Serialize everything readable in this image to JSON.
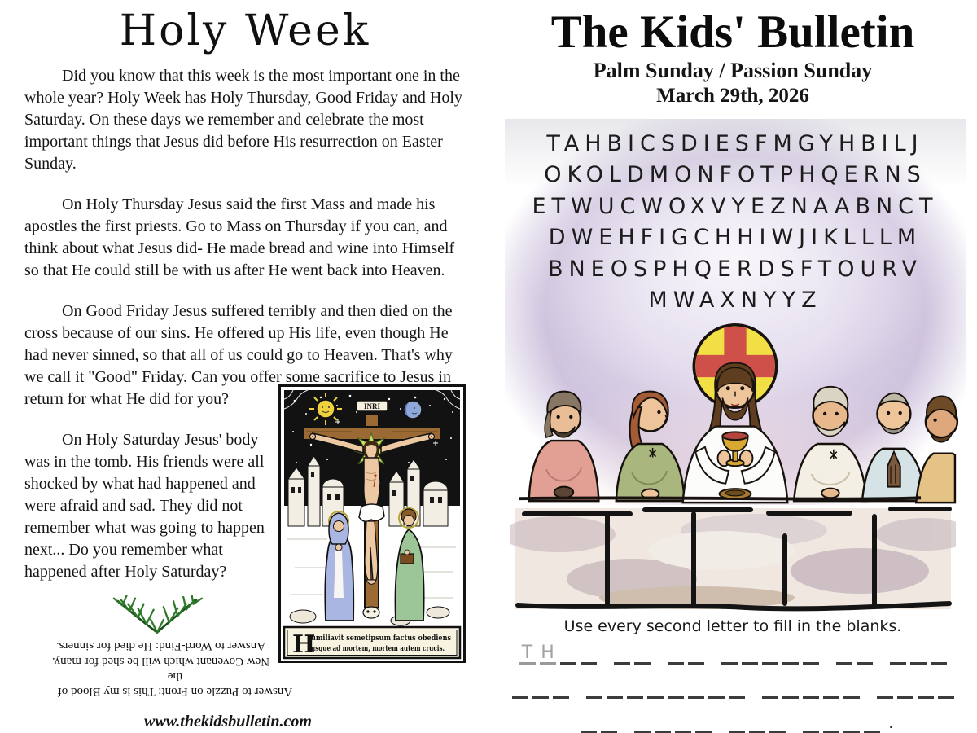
{
  "left_page": {
    "title": "Holy Week",
    "paragraphs": [
      "Did you know that this week is the most important one in the whole year?  Holy Week has Holy Thursday, Good Friday and Holy Saturday.  On these days we remember and celebrate the most important things that Jesus did before His resurrection on Easter Sunday.",
      "On Holy Thursday Jesus said the first Mass and made his apostles the first priests.  Go to Mass on Thursday if you can, and think about what Jesus did- He made bread and wine into Himself so that He could still be with us after He went back into Heaven.",
      "On Good Friday Jesus suffered terribly and then died on the cross because of our sins.  He offered up His life, even though He had never sinned, so that all of us could go to Heaven.  That's why we call it \"Good\" Friday.  Can you offer some sacrifice to Jesus in return for what He did for you?",
      "On Holy Saturday Jesus' body was in the tomb.  His friends were all shocked by what had happened and were afraid and sad.  They did not remember what was going to happen next...  Do you remember what happened after Holy Saturday?"
    ],
    "crucifix_image": {
      "inri": "INRI",
      "caption_initial": "H",
      "caption_line1": "umiliavit semetipsum factus obediens",
      "caption_line2": "usque ad mortem, mortem autem crucis."
    },
    "answers_upside_down": {
      "puzzle_line1": "Answer to Puzzle on Front: This is my Blood of the",
      "puzzle_line2": "New Covenant which will be shed for many.",
      "wordfind_line": "Answer to Word-Find: He died for sinners."
    },
    "website": "www.thekidsbulletin.com"
  },
  "right_page": {
    "title": "The Kids' Bulletin",
    "subtitle": "Palm Sunday / Passion Sunday",
    "date": "March 29th, 2026",
    "word_search": {
      "rows": [
        "TAHBICSDIESFMGYHBILJ",
        "OKOLDMONFOTPHQERNS",
        "ETWUCWOXVYEZNAABNCT",
        "DWEHFIGCHHIWJIKLLLM",
        "BNEOSPHQERDSFTOURV",
        "MWAXNYYZ"
      ]
    },
    "instruction": "Use every second letter to fill in the blanks.",
    "blanks": {
      "lines": [
        {
          "words": [
            {
              "len": 4,
              "hint": "TH"
            },
            {
              "len": 2
            },
            {
              "len": 2
            },
            {
              "len": 5
            },
            {
              "len": 2
            },
            {
              "len": 3
            }
          ]
        },
        {
          "words": [
            {
              "len": 3
            },
            {
              "len": 8
            },
            {
              "len": 5
            },
            {
              "len": 4
            }
          ]
        },
        {
          "words": [
            {
              "len": 2
            },
            {
              "len": 4
            },
            {
              "len": 3
            },
            {
              "len": 4
            }
          ],
          "suffix": "."
        }
      ]
    },
    "colors": {
      "wash_purple": "#cfc4de",
      "halo_yellow": "#f2df46",
      "halo_cross_red": "#cf4f49",
      "palm_green": "#2c7a28",
      "stone_beige": "#efe7e0"
    }
  }
}
